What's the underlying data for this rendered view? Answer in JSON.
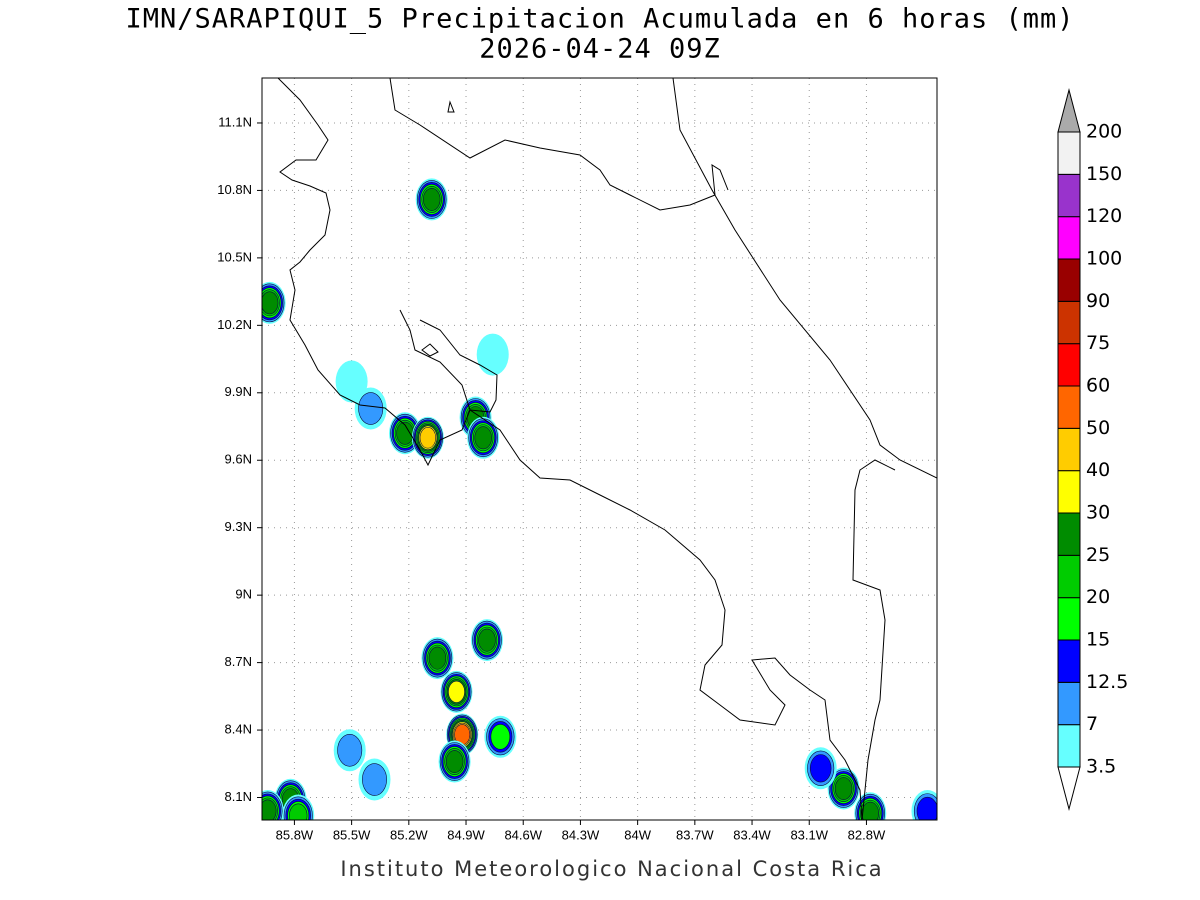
{
  "map": {
    "title": "IMN/SARAPIQUI_5 Precipitacion Acumulada en 6 horas (mm)",
    "subtitle": "2026-04-24 09Z",
    "footer": "Instituto Meteorologico Nacional Costa Rica",
    "xlim": [
      -85.97,
      -82.43
    ],
    "ylim": [
      8.0,
      11.3
    ],
    "xticks": [
      {
        "value": -85.8,
        "label": "85.8W"
      },
      {
        "value": -85.5,
        "label": "85.5W"
      },
      {
        "value": -85.2,
        "label": "85.2W"
      },
      {
        "value": -84.9,
        "label": "84.9W"
      },
      {
        "value": -84.6,
        "label": "84.6W"
      },
      {
        "value": -84.3,
        "label": "84.3W"
      },
      {
        "value": -84.0,
        "label": "84W"
      },
      {
        "value": -83.7,
        "label": "83.7W"
      },
      {
        "value": -83.4,
        "label": "83.4W"
      },
      {
        "value": -83.1,
        "label": "83.1W"
      },
      {
        "value": -82.8,
        "label": "82.8W"
      }
    ],
    "yticks": [
      {
        "value": 8.1,
        "label": "8.1N"
      },
      {
        "value": 8.4,
        "label": "8.4N"
      },
      {
        "value": 8.7,
        "label": "8.7N"
      },
      {
        "value": 9.0,
        "label": "9N"
      },
      {
        "value": 9.3,
        "label": "9.3N"
      },
      {
        "value": 9.6,
        "label": "9.6N"
      },
      {
        "value": 9.9,
        "label": "9.9N"
      },
      {
        "value": 10.2,
        "label": "10.2N"
      },
      {
        "value": 10.5,
        "label": "10.5N"
      },
      {
        "value": 10.8,
        "label": "10.8N"
      },
      {
        "value": 11.1,
        "label": "11.1N"
      }
    ],
    "grid": true,
    "colorbar": {
      "levels": [
        3.5,
        7,
        12.5,
        15,
        20,
        25,
        30,
        40,
        50,
        60,
        75,
        90,
        100,
        120,
        150,
        200
      ],
      "colors": [
        "#66ffff",
        "#3399ff",
        "#0000ff",
        "#00ff00",
        "#00cc00",
        "#008c00",
        "#ffff00",
        "#ffcc00",
        "#ff6600",
        "#ff0000",
        "#cc3300",
        "#990000",
        "#ff00ff",
        "#9933cc",
        "#f2f2f2"
      ],
      "below_color": "#ffffff",
      "above_color": "#aaaaaa"
    },
    "rain_cells": [
      {
        "lon": -85.08,
        "lat": 10.76,
        "value": 25
      },
      {
        "lon": -85.93,
        "lat": 10.3,
        "value": 25
      },
      {
        "lon": -85.22,
        "lat": 9.72,
        "value": 25
      },
      {
        "lon": -85.1,
        "lat": 9.7,
        "value": 40
      },
      {
        "lon": -84.85,
        "lat": 9.79,
        "value": 25
      },
      {
        "lon": -84.81,
        "lat": 9.7,
        "value": 25
      },
      {
        "lon": -84.79,
        "lat": 8.8,
        "value": 25
      },
      {
        "lon": -85.05,
        "lat": 8.72,
        "value": 25
      },
      {
        "lon": -84.95,
        "lat": 8.57,
        "value": 30
      },
      {
        "lon": -84.92,
        "lat": 8.38,
        "value": 50
      },
      {
        "lon": -84.96,
        "lat": 8.26,
        "value": 25
      },
      {
        "lon": -84.72,
        "lat": 8.37,
        "value": 15
      },
      {
        "lon": -85.82,
        "lat": 8.09,
        "value": 25
      },
      {
        "lon": -85.94,
        "lat": 8.04,
        "value": 25
      },
      {
        "lon": -85.78,
        "lat": 8.02,
        "value": 20
      },
      {
        "lon": -85.51,
        "lat": 8.31,
        "value": 7
      },
      {
        "lon": -85.38,
        "lat": 8.18,
        "value": 7
      },
      {
        "lon": -82.92,
        "lat": 8.14,
        "value": 25
      },
      {
        "lon": -82.78,
        "lat": 8.03,
        "value": 25
      },
      {
        "lon": -83.04,
        "lat": 8.23,
        "value": 12.5
      },
      {
        "lon": -82.48,
        "lat": 8.04,
        "value": 12.5
      },
      {
        "lon": -85.5,
        "lat": 9.95,
        "value": 3.5
      },
      {
        "lon": -85.4,
        "lat": 9.83,
        "value": 7
      },
      {
        "lon": -84.76,
        "lat": 10.07,
        "value": 3.5
      }
    ]
  }
}
